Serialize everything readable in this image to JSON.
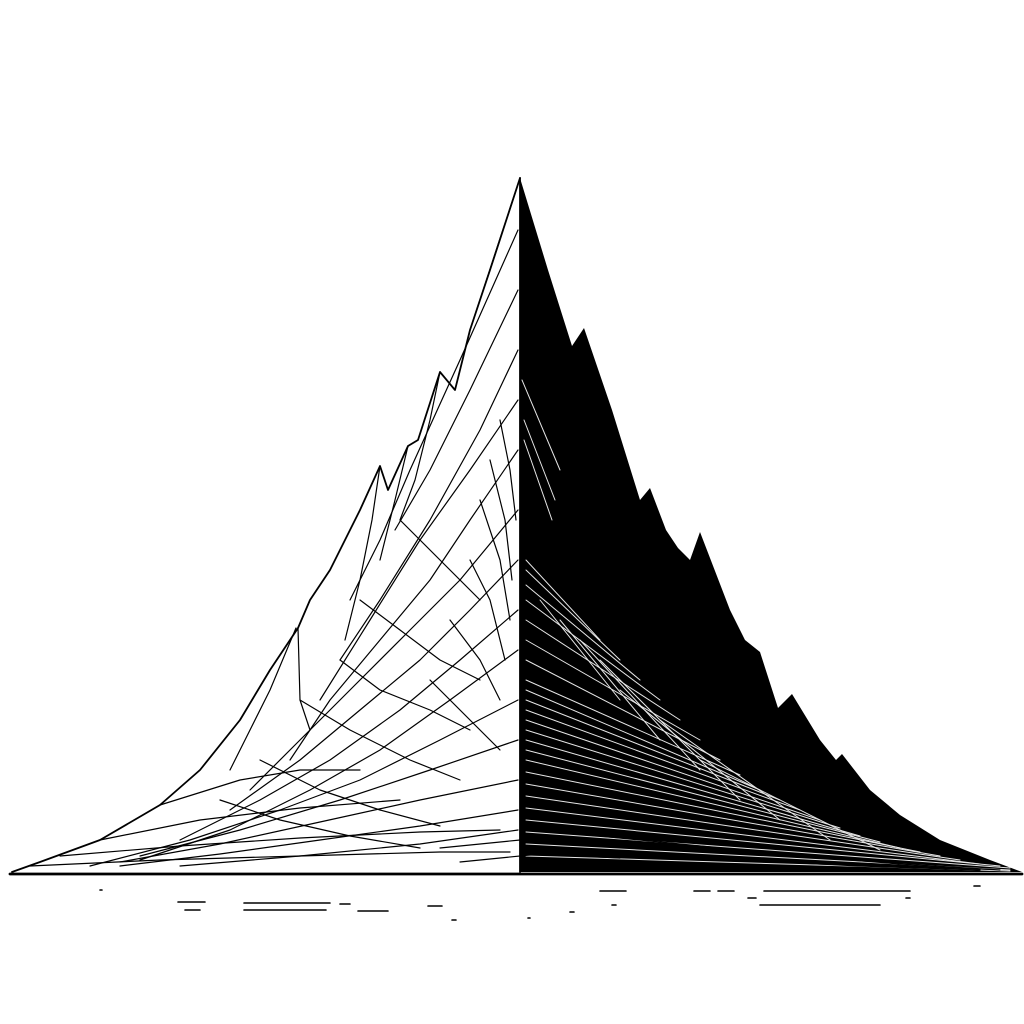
{
  "colors": {
    "background": "#ffffff",
    "ink": "#000000"
  },
  "illustration": {
    "subject": "pyramid-peak",
    "icon": "mountain-line-art-icon"
  }
}
